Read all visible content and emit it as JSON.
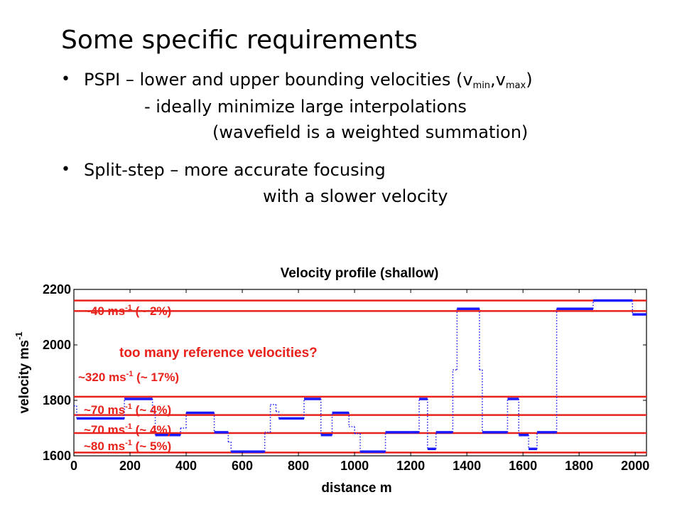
{
  "slide": {
    "title": "Some specific requirements",
    "bullet1": {
      "marker": "•",
      "line1_pre": "PSPI – lower and upper bounding velocities (v",
      "sub1": "min",
      "comma": ",v",
      "sub2": "max",
      "close": ")",
      "line2": "- ideally minimize large interpolations",
      "line3": "(wavefield is a weighted summation)"
    },
    "bullet2": {
      "marker": "•",
      "line1": "Split-step – more accurate focusing",
      "line2": "with a slower velocity"
    }
  },
  "chart_data": {
    "type": "line",
    "title": "Velocity profile (shallow)",
    "xlabel": "distance m",
    "ylabel": "velocity ms",
    "ylabel_sup": "-1",
    "xlim": [
      0,
      2040
    ],
    "ylim": [
      1600,
      2200
    ],
    "xticks": [
      "0",
      "200",
      "400",
      "600",
      "800",
      "1000",
      "1200",
      "1400",
      "1600",
      "1800",
      "2000"
    ],
    "yticks": [
      "1600",
      "1800",
      "2000",
      "2200"
    ],
    "series_color": "#1a1aff",
    "reference_color": "#e8211a",
    "profile_segments": [
      {
        "x0": 0,
        "x1": 10,
        "y": 1780
      },
      {
        "x0": 10,
        "x1": 180,
        "y": 1735
      },
      {
        "x0": 180,
        "x1": 280,
        "y": 1805
      },
      {
        "x0": 280,
        "x1": 290,
        "y": 1760
      },
      {
        "x0": 290,
        "x1": 380,
        "y": 1675
      },
      {
        "x0": 380,
        "x1": 400,
        "y": 1700
      },
      {
        "x0": 400,
        "x1": 500,
        "y": 1755
      },
      {
        "x0": 500,
        "x1": 550,
        "y": 1685
      },
      {
        "x0": 550,
        "x1": 560,
        "y": 1650
      },
      {
        "x0": 560,
        "x1": 680,
        "y": 1615
      },
      {
        "x0": 680,
        "x1": 700,
        "y": 1685
      },
      {
        "x0": 700,
        "x1": 720,
        "y": 1785
      },
      {
        "x0": 720,
        "x1": 730,
        "y": 1760
      },
      {
        "x0": 730,
        "x1": 820,
        "y": 1735
      },
      {
        "x0": 820,
        "x1": 880,
        "y": 1805
      },
      {
        "x0": 880,
        "x1": 920,
        "y": 1675
      },
      {
        "x0": 920,
        "x1": 980,
        "y": 1755
      },
      {
        "x0": 980,
        "x1": 1000,
        "y": 1705
      },
      {
        "x0": 1000,
        "x1": 1020,
        "y": 1680
      },
      {
        "x0": 1020,
        "x1": 1110,
        "y": 1615
      },
      {
        "x0": 1110,
        "x1": 1200,
        "y": 1685
      },
      {
        "x0": 1200,
        "x1": 1230,
        "y": 1685
      },
      {
        "x0": 1230,
        "x1": 1260,
        "y": 1805
      },
      {
        "x0": 1260,
        "x1": 1290,
        "y": 1625
      },
      {
        "x0": 1290,
        "x1": 1350,
        "y": 1685
      },
      {
        "x0": 1350,
        "x1": 1365,
        "y": 1910
      },
      {
        "x0": 1365,
        "x1": 1445,
        "y": 2130
      },
      {
        "x0": 1445,
        "x1": 1455,
        "y": 1910
      },
      {
        "x0": 1455,
        "x1": 1545,
        "y": 1685
      },
      {
        "x0": 1545,
        "x1": 1585,
        "y": 1805
      },
      {
        "x0": 1585,
        "x1": 1620,
        "y": 1675
      },
      {
        "x0": 1620,
        "x1": 1650,
        "y": 1625
      },
      {
        "x0": 1650,
        "x1": 1720,
        "y": 1685
      },
      {
        "x0": 1720,
        "x1": 1850,
        "y": 2130
      },
      {
        "x0": 1850,
        "x1": 1990,
        "y": 2160
      },
      {
        "x0": 1990,
        "x1": 2040,
        "y": 2110
      }
    ],
    "reference_velocities": [
      1612,
      1682,
      1747,
      1813,
      2122,
      2160
    ],
    "annotations": {
      "a40": {
        "prefix": "~40 ms",
        "sup": "-1",
        "suffix": " (~ 2%)"
      },
      "a320": {
        "prefix": "~320 ms",
        "sup": "-1",
        "suffix": " (~ 17%)"
      },
      "a70a": {
        "prefix": "~70 ms",
        "sup": "-1",
        "suffix": " (~ 4%)"
      },
      "a70b": {
        "prefix": "~70 ms",
        "sup": "-1",
        "suffix": " (~ 4%)"
      },
      "a80": {
        "prefix": "~80 ms",
        "sup": "-1",
        "suffix": " (~ 5%)"
      },
      "question": "too many reference velocities?"
    }
  }
}
